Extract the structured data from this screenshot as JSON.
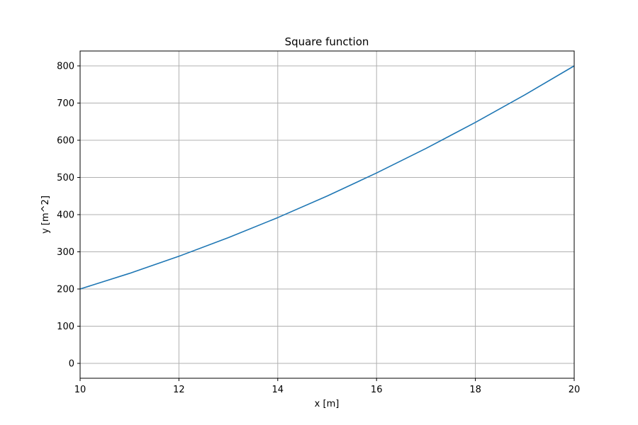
{
  "chart_data": {
    "type": "line",
    "title": "Square function",
    "xlabel": "x [m]",
    "ylabel": "y [m^2]",
    "xlim": [
      10,
      20
    ],
    "ylim": [
      -40,
      840
    ],
    "xticks": [
      10,
      12,
      14,
      16,
      18,
      20
    ],
    "yticks": [
      0,
      100,
      200,
      300,
      400,
      500,
      600,
      700,
      800
    ],
    "grid": true,
    "series": [
      {
        "color": "#1f77b4",
        "x": [
          10,
          11,
          12,
          13,
          14,
          15,
          16,
          17,
          18,
          19,
          20
        ],
        "y": [
          200,
          242,
          288,
          338,
          392,
          450,
          512,
          578,
          648,
          722,
          800
        ]
      }
    ]
  }
}
